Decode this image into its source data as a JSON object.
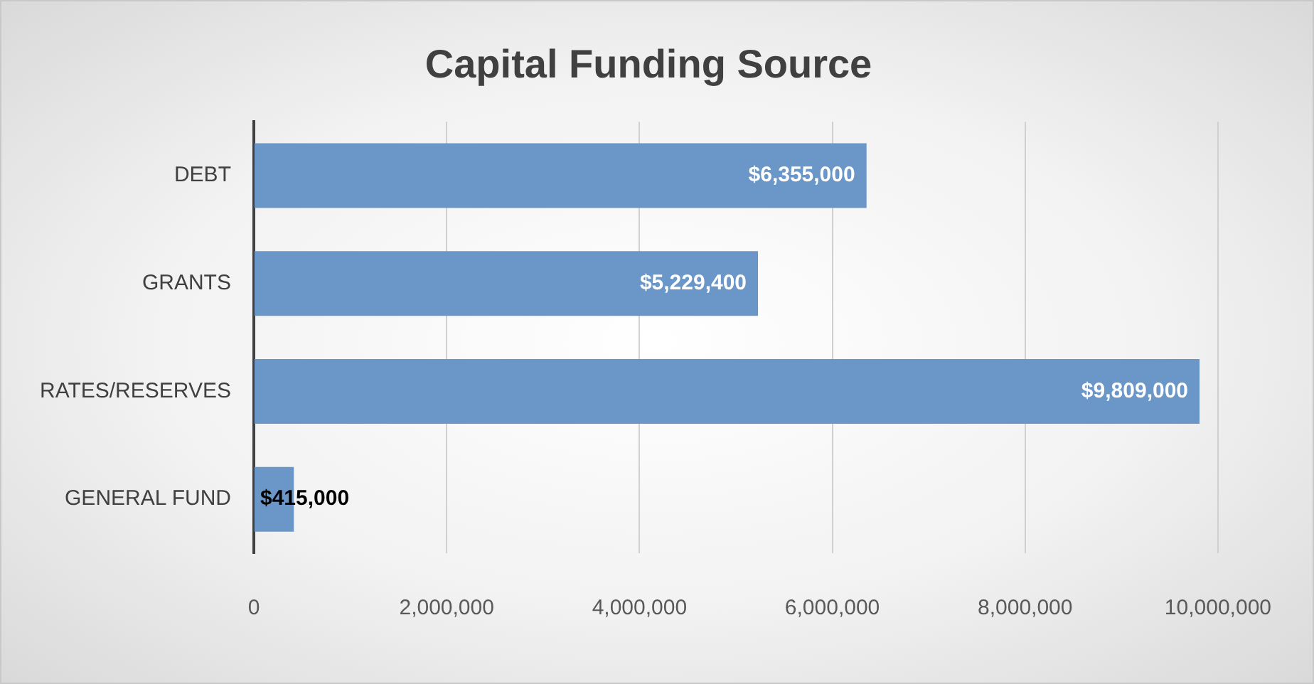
{
  "chart_data": {
    "type": "bar",
    "orientation": "horizontal",
    "title": "Capital Funding Source",
    "categories": [
      "DEBT",
      "GRANTS",
      "RATES/RESERVES",
      "GENERAL FUND"
    ],
    "values": [
      6355000,
      5229400,
      9809000,
      415000
    ],
    "value_labels": [
      "$6,355,000",
      "$5,229,400",
      "$9,809,000",
      "$415,000"
    ],
    "color": "#6a96c8",
    "xlim": [
      0,
      10000000
    ],
    "xticks": [
      0,
      {
        "value": 2000000,
        "label": "2,000,000"
      },
      {
        "value": 4000000,
        "label": "4,000,000"
      },
      {
        "value": 6000000,
        "label": "6,000,000"
      },
      {
        "value": 8000000,
        "label": "8,000,000"
      },
      {
        "value": 10000000,
        "label": "10,000,000"
      }
    ],
    "grid": "x",
    "legend": false
  }
}
